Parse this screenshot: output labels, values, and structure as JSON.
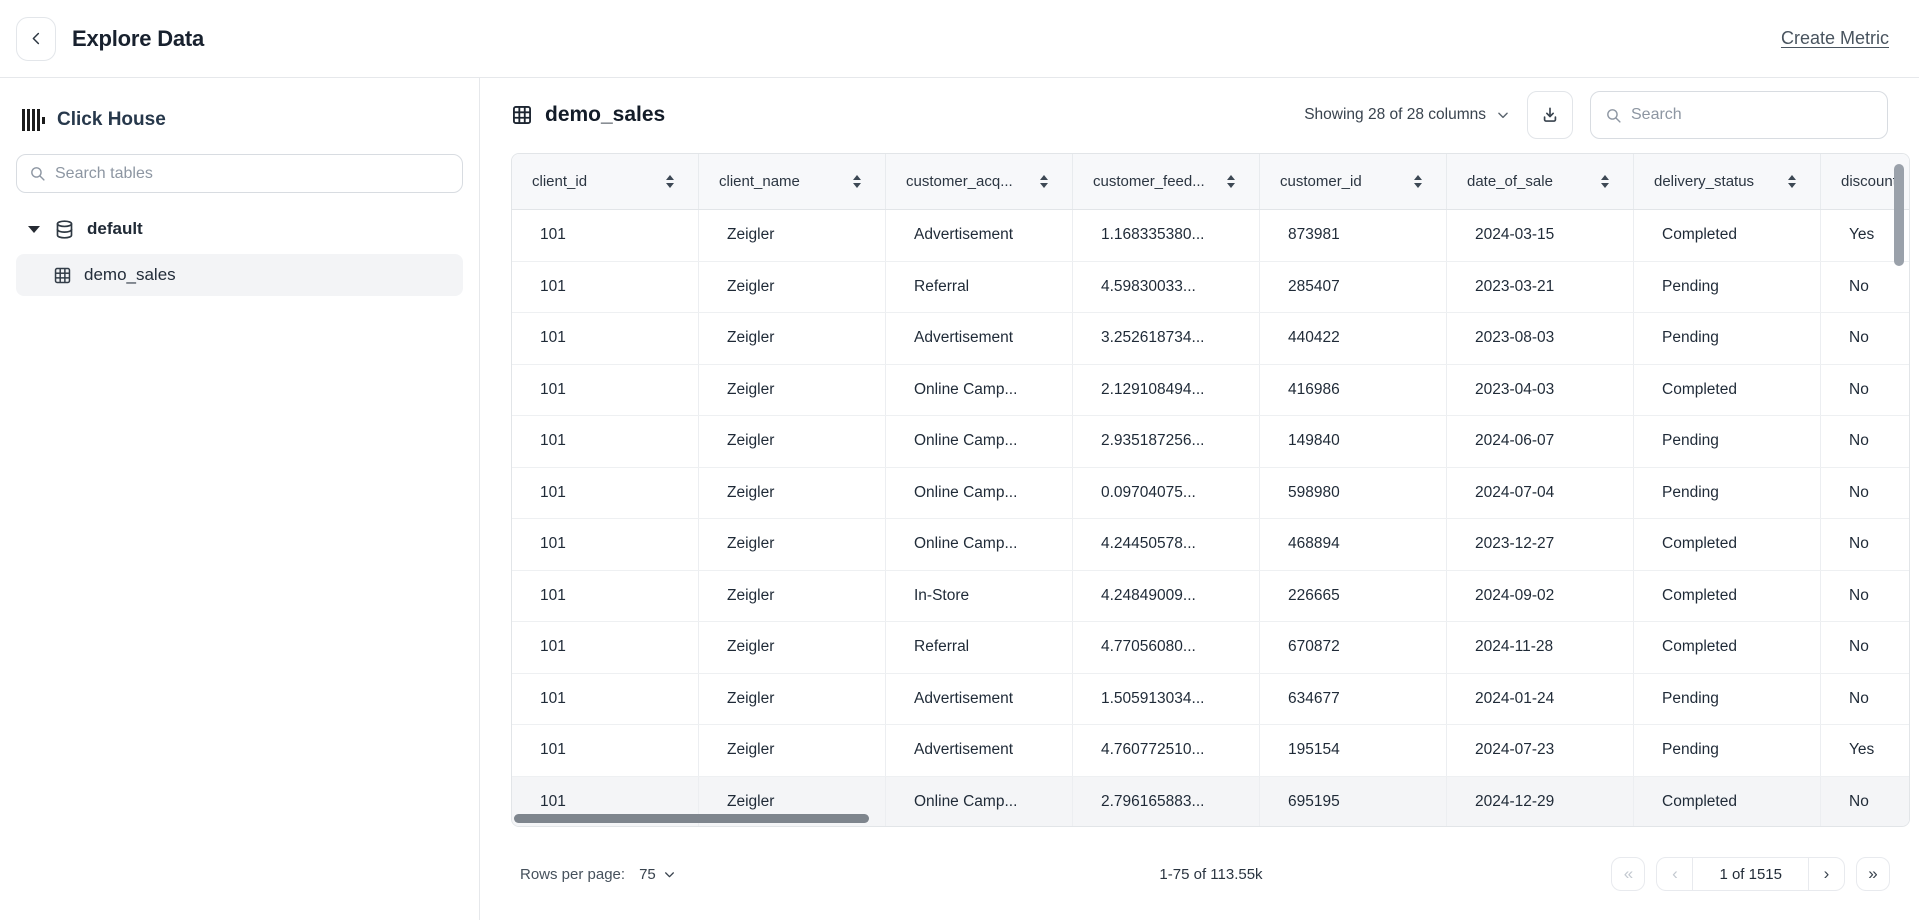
{
  "header": {
    "title": "Explore Data",
    "create_metric_label": "Create Metric"
  },
  "sidebar": {
    "connection_name": "Click House",
    "search_placeholder": "Search tables",
    "database": {
      "label": "default",
      "expanded": true
    },
    "tables": [
      {
        "label": "demo_sales",
        "selected": true
      }
    ]
  },
  "main": {
    "table_title": "demo_sales",
    "columns_dropdown_label": "Showing 28 of 28 columns",
    "search_placeholder": "Search",
    "grid": {
      "columns": [
        {
          "key": "client_id",
          "label": "client_id",
          "sortable": true
        },
        {
          "key": "client_name",
          "label": "client_name",
          "sortable": true
        },
        {
          "key": "customer_acq",
          "label": "customer_acq...",
          "sortable": true
        },
        {
          "key": "customer_feed",
          "label": "customer_feed...",
          "sortable": true
        },
        {
          "key": "customer_id",
          "label": "customer_id",
          "sortable": true
        },
        {
          "key": "date_of_sale",
          "label": "date_of_sale",
          "sortable": true
        },
        {
          "key": "delivery_status",
          "label": "delivery_status",
          "sortable": true
        },
        {
          "key": "discount",
          "label": "discount",
          "sortable": true
        }
      ],
      "rows": [
        [
          "101",
          "Zeigler",
          "Advertisement",
          "1.168335380...",
          "873981",
          "2024-03-15",
          "Completed",
          "Yes"
        ],
        [
          "101",
          "Zeigler",
          "Referral",
          "4.59830033...",
          "285407",
          "2023-03-21",
          "Pending",
          "No"
        ],
        [
          "101",
          "Zeigler",
          "Advertisement",
          "3.252618734...",
          "440422",
          "2023-08-03",
          "Pending",
          "No"
        ],
        [
          "101",
          "Zeigler",
          "Online Camp...",
          "2.129108494...",
          "416986",
          "2023-04-03",
          "Completed",
          "No"
        ],
        [
          "101",
          "Zeigler",
          "Online Camp...",
          "2.935187256...",
          "149840",
          "2024-06-07",
          "Pending",
          "No"
        ],
        [
          "101",
          "Zeigler",
          "Online Camp...",
          "0.09704075...",
          "598980",
          "2024-07-04",
          "Pending",
          "No"
        ],
        [
          "101",
          "Zeigler",
          "Online Camp...",
          "4.24450578...",
          "468894",
          "2023-12-27",
          "Completed",
          "No"
        ],
        [
          "101",
          "Zeigler",
          "In-Store",
          "4.24849009...",
          "226665",
          "2024-09-02",
          "Completed",
          "No"
        ],
        [
          "101",
          "Zeigler",
          "Referral",
          "4.77056080...",
          "670872",
          "2024-11-28",
          "Completed",
          "No"
        ],
        [
          "101",
          "Zeigler",
          "Advertisement",
          "1.505913034...",
          "634677",
          "2024-01-24",
          "Pending",
          "No"
        ],
        [
          "101",
          "Zeigler",
          "Advertisement",
          "4.760772510...",
          "195154",
          "2024-07-23",
          "Pending",
          "Yes"
        ],
        [
          "101",
          "Zeigler",
          "Online Camp...",
          "2.796165883...",
          "695195",
          "2024-12-29",
          "Completed",
          "No"
        ]
      ],
      "highlighted_row_index": 11
    },
    "footer": {
      "rows_per_page_label": "Rows per page:",
      "rows_per_page_value": "75",
      "range_label": "1-75 of 113.55k",
      "pagination": {
        "first_label": "«",
        "prev_label": "‹",
        "page_label": "1 of 1515",
        "next_label": "›",
        "last_label": "»",
        "first_enabled": false,
        "prev_enabled": false,
        "next_enabled": true,
        "last_enabled": true
      }
    }
  },
  "icons": {
    "back": "chevron-left-icon",
    "brand": "clickhouse-logo-icon",
    "sidebar_search": "search-icon",
    "tree_caret": "caret-down-icon",
    "database": "database-icon",
    "table": "table-grid-icon",
    "columns_dropdown": "chevron-down-icon",
    "download": "download-icon",
    "table_search": "search-icon",
    "sort": "sort-arrows-icon"
  },
  "colors": {
    "text_dark": "#1f2a37",
    "border": "#e6e8eb",
    "header_bg": "#f7f8fa",
    "selected_item_bg": "#f3f4f6",
    "highlight_row_bg": "#f4f5f7",
    "scrollbar_thumb": "#7e858d",
    "muted_text": "#8d96a2"
  }
}
